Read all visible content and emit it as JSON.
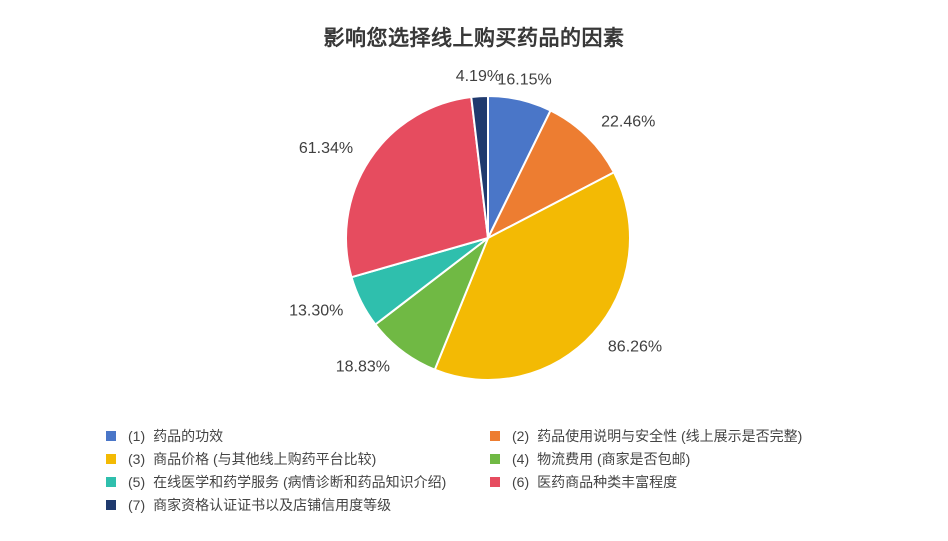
{
  "chart_data": {
    "type": "pie",
    "title": "影响您选择线上购买药品的因素",
    "legend_position": "bottom",
    "legend_columns": 2,
    "start_angle_deg": 0,
    "direction": "clockwise",
    "value_label_format": "0.00%",
    "label_color": "#404040",
    "title_color": "#383838",
    "series": [
      {
        "num": "(1)",
        "name": "药品的功效",
        "value": 16.15,
        "display": "16.15%",
        "color": "#4A76C8"
      },
      {
        "num": "(2)",
        "name": "药品使用说明与安全性 (线上展示是否完整)",
        "value": 22.46,
        "display": "22.46%",
        "color": "#ED7D31"
      },
      {
        "num": "(3)",
        "name": "商品价格 (与其他线上购药平台比较)",
        "value": 86.26,
        "display": "86.26%",
        "color": "#F3BA04"
      },
      {
        "num": "(4)",
        "name": "物流费用 (商家是否包邮)",
        "value": 18.83,
        "display": "18.83%",
        "color": "#70B944"
      },
      {
        "num": "(5)",
        "name": "在线医学和药学服务 (病情诊断和药品知识介绍)",
        "value": 13.3,
        "display": "13.30%",
        "color": "#2FBFAD"
      },
      {
        "num": "(6)",
        "name": "医药商品种类丰富程度",
        "value": 61.34,
        "display": "61.34%",
        "color": "#E64C5F"
      },
      {
        "num": "(7)",
        "name": "商家资格认证证书以及店铺信用度等级",
        "value": 4.19,
        "display": "4.19%",
        "color": "#1F3A6E"
      }
    ]
  }
}
